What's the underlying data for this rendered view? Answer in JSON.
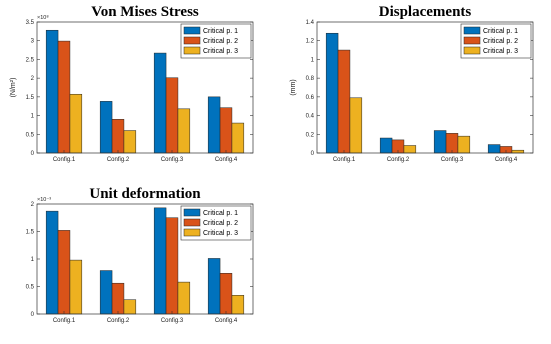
{
  "chart_data": [
    {
      "type": "bar",
      "title": "Von Mises Stress",
      "ylabel": "(N/m²)",
      "exponent": "×10⁸",
      "ylim": [
        0,
        3.5
      ],
      "yticks": [
        "0",
        "0.5",
        "1",
        "1.5",
        "2",
        "2.5",
        "3",
        "3.5"
      ],
      "categories": [
        "Config.1",
        "Config.2",
        "Config.3",
        "Config.4"
      ],
      "series": [
        {
          "name": "Critical p. 1",
          "color": "#0072BD",
          "values": [
            3.28,
            1.38,
            2.67,
            1.5
          ]
        },
        {
          "name": "Critical p. 2",
          "color": "#D95319",
          "values": [
            2.99,
            0.9,
            2.01,
            1.21
          ]
        },
        {
          "name": "Critical p. 3",
          "color": "#EDB120",
          "values": [
            1.57,
            0.6,
            1.18,
            0.8
          ]
        }
      ],
      "legend": "top-right",
      "grid": false
    },
    {
      "type": "bar",
      "title": "Displacements",
      "ylabel": "(mm)",
      "exponent": "",
      "ylim": [
        0,
        1.4
      ],
      "yticks": [
        "0",
        "0.2",
        "0.4",
        "0.6",
        "0.8",
        "1",
        "1.2",
        "1.4"
      ],
      "categories": [
        "Config.1",
        "Config.2",
        "Config.3",
        "Config.4"
      ],
      "series": [
        {
          "name": "Critical p. 1",
          "color": "#0072BD",
          "values": [
            1.28,
            0.16,
            0.24,
            0.09
          ]
        },
        {
          "name": "Critical p. 2",
          "color": "#D95319",
          "values": [
            1.1,
            0.14,
            0.21,
            0.07
          ]
        },
        {
          "name": "Critical p. 3",
          "color": "#EDB120",
          "values": [
            0.59,
            0.08,
            0.18,
            0.03
          ]
        }
      ],
      "legend": "top-right",
      "grid": false
    },
    {
      "type": "bar",
      "title": "Unit deformation",
      "ylabel": "",
      "exponent": "×10⁻³",
      "ylim": [
        0,
        2
      ],
      "yticks": [
        "0",
        "0.5",
        "1",
        "1.5",
        "2"
      ],
      "categories": [
        "Config.1",
        "Config.2",
        "Config.3",
        "Config.4"
      ],
      "series": [
        {
          "name": "Critical p. 1",
          "color": "#0072BD",
          "values": [
            1.87,
            0.79,
            1.93,
            1.01
          ]
        },
        {
          "name": "Critical p. 2",
          "color": "#D95319",
          "values": [
            1.52,
            0.56,
            1.75,
            0.74
          ]
        },
        {
          "name": "Critical p. 3",
          "color": "#EDB120",
          "values": [
            0.98,
            0.26,
            0.58,
            0.34
          ]
        }
      ],
      "legend": "top-right",
      "grid": false
    }
  ]
}
